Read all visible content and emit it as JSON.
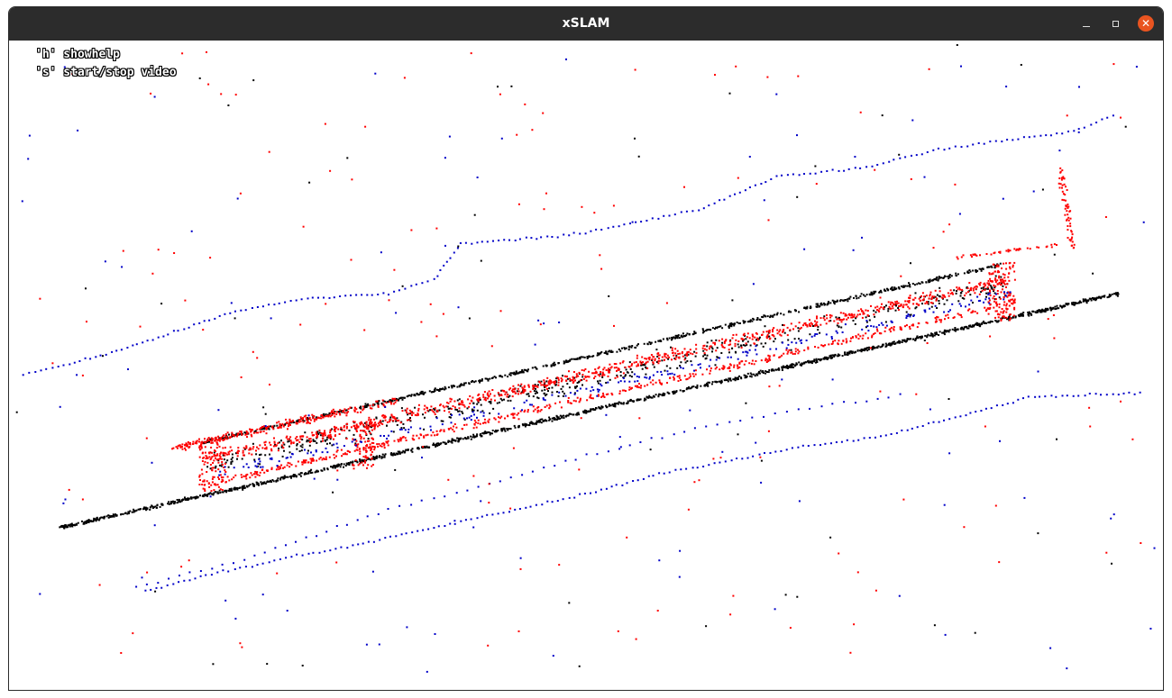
{
  "window": {
    "title": "xSLAM",
    "controls": {
      "minimize": "minimize",
      "maximize": "maximize",
      "close": "✕"
    }
  },
  "overlay": {
    "help_lines": [
      "'h' showhelp",
      "'s' start/stop video"
    ]
  },
  "colors": {
    "titlebar": "#2c2c2c",
    "close_button": "#e95420",
    "map_points": "#000000",
    "active_points": "#ff0000",
    "trajectory_points": "#0000c8"
  },
  "icons": [
    "minimize-icon",
    "maximize-icon",
    "close-icon"
  ]
}
